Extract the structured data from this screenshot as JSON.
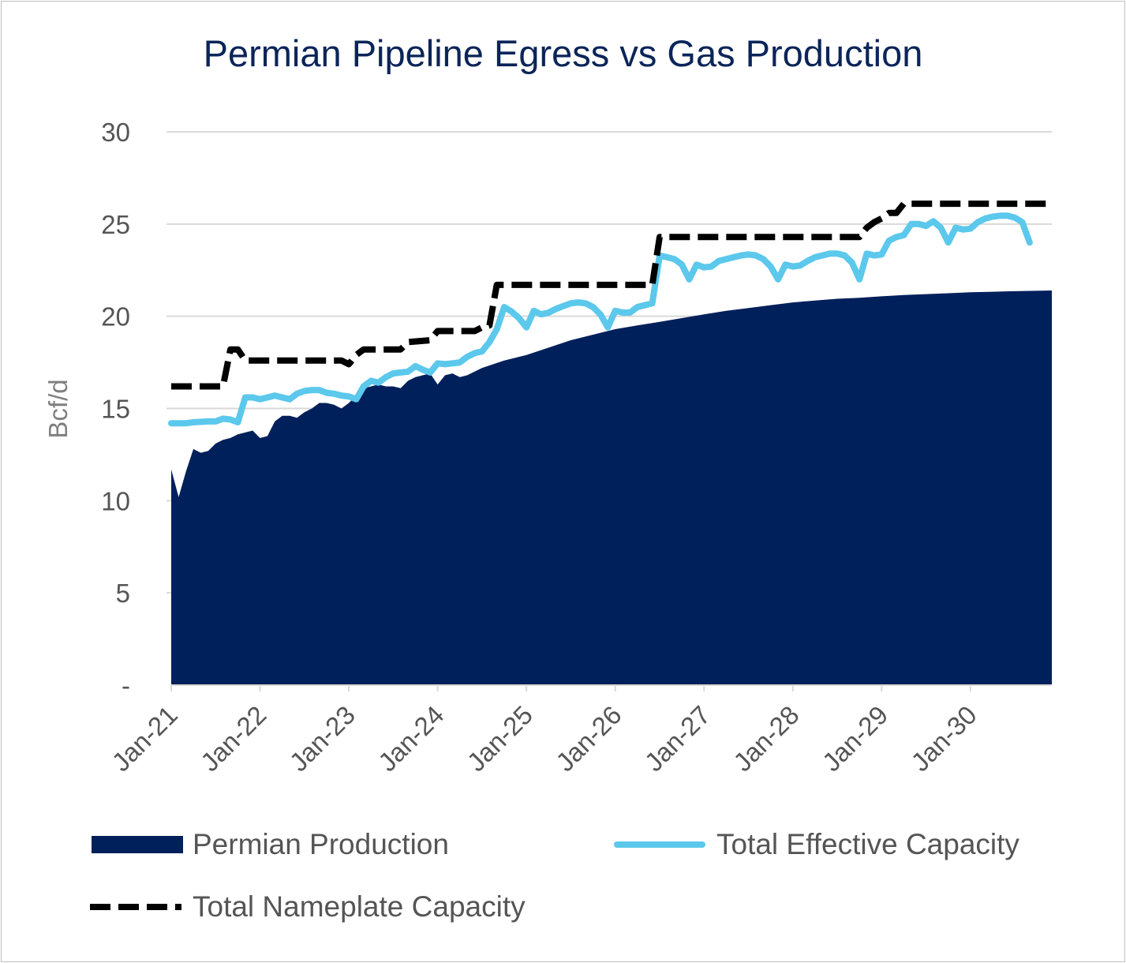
{
  "chart_data": {
    "type": "area",
    "title": "Permian Pipeline Egress vs Gas Production",
    "ylabel": "Bcf/d",
    "xlabel": "",
    "ylim": [
      0,
      30
    ],
    "yticks": [
      0,
      5,
      10,
      15,
      20,
      25,
      30
    ],
    "ytick_labels": [
      "-",
      "5",
      "10",
      "15",
      "20",
      "25",
      "30"
    ],
    "xticks": [
      0,
      12,
      24,
      36,
      48,
      60,
      72,
      84,
      96,
      108
    ],
    "xtick_labels": [
      "Jan-21",
      "Jan-22",
      "Jan-23",
      "Jan-24",
      "Jan-25",
      "Jan-26",
      "Jan-27",
      "Jan-28",
      "Jan-29",
      "Jan-30"
    ],
    "xlim": [
      0,
      119
    ],
    "grid": true,
    "legend_position": "bottom",
    "series": [
      {
        "name": "Permian Production",
        "kind": "area",
        "color": "#00205b",
        "points": [
          [
            0,
            11.7
          ],
          [
            1,
            10.2
          ],
          [
            2,
            11.6
          ],
          [
            3,
            12.8
          ],
          [
            4,
            12.6
          ],
          [
            5,
            12.7
          ],
          [
            6,
            13.1
          ],
          [
            7,
            13.3
          ],
          [
            8,
            13.4
          ],
          [
            9,
            13.6
          ],
          [
            10,
            13.7
          ],
          [
            11,
            13.8
          ],
          [
            12,
            13.4
          ],
          [
            13,
            13.5
          ],
          [
            14,
            14.3
          ],
          [
            15,
            14.6
          ],
          [
            16,
            14.6
          ],
          [
            17,
            14.5
          ],
          [
            18,
            14.8
          ],
          [
            19,
            15.0
          ],
          [
            20,
            15.3
          ],
          [
            21,
            15.3
          ],
          [
            22,
            15.2
          ],
          [
            23,
            15.0
          ],
          [
            24,
            15.3
          ],
          [
            25,
            15.7
          ],
          [
            26,
            16.1
          ],
          [
            27,
            16.2
          ],
          [
            28,
            16.3
          ],
          [
            29,
            16.2
          ],
          [
            30,
            16.2
          ],
          [
            31,
            16.1
          ],
          [
            32,
            16.5
          ],
          [
            33,
            16.7
          ],
          [
            34,
            16.8
          ],
          [
            35,
            16.9
          ],
          [
            36,
            16.3
          ],
          [
            37,
            16.8
          ],
          [
            38,
            16.9
          ],
          [
            39,
            16.7
          ],
          [
            40,
            16.8
          ],
          [
            42,
            17.2
          ],
          [
            45,
            17.6
          ],
          [
            48,
            17.9
          ],
          [
            51,
            18.3
          ],
          [
            54,
            18.7
          ],
          [
            57,
            19.0
          ],
          [
            60,
            19.3
          ],
          [
            63,
            19.5
          ],
          [
            66,
            19.7
          ],
          [
            69,
            19.9
          ],
          [
            72,
            20.1
          ],
          [
            75,
            20.3
          ],
          [
            78,
            20.45
          ],
          [
            81,
            20.6
          ],
          [
            84,
            20.75
          ],
          [
            87,
            20.85
          ],
          [
            90,
            20.95
          ],
          [
            93,
            21.0
          ],
          [
            96,
            21.08
          ],
          [
            99,
            21.15
          ],
          [
            102,
            21.2
          ],
          [
            105,
            21.25
          ],
          [
            108,
            21.3
          ],
          [
            111,
            21.33
          ],
          [
            114,
            21.36
          ],
          [
            117,
            21.38
          ],
          [
            119,
            21.4
          ]
        ]
      },
      {
        "name": "Total Effective Capacity",
        "kind": "line",
        "color": "#5bc8ec",
        "points": [
          [
            0,
            14.2
          ],
          [
            2,
            14.2
          ],
          [
            3,
            14.25
          ],
          [
            5,
            14.3
          ],
          [
            6,
            14.3
          ],
          [
            7,
            14.45
          ],
          [
            8,
            14.4
          ],
          [
            9,
            14.25
          ],
          [
            10,
            15.6
          ],
          [
            11,
            15.6
          ],
          [
            12,
            15.5
          ],
          [
            13,
            15.6
          ],
          [
            14,
            15.7
          ],
          [
            15,
            15.6
          ],
          [
            16,
            15.5
          ],
          [
            17,
            15.8
          ],
          [
            18,
            15.95
          ],
          [
            19,
            16.0
          ],
          [
            20,
            16.0
          ],
          [
            21,
            15.85
          ],
          [
            22,
            15.8
          ],
          [
            23,
            15.7
          ],
          [
            24,
            15.65
          ],
          [
            25,
            15.5
          ],
          [
            26,
            16.2
          ],
          [
            27,
            16.5
          ],
          [
            28,
            16.4
          ],
          [
            29,
            16.7
          ],
          [
            30,
            16.9
          ],
          [
            31,
            16.95
          ],
          [
            32,
            17.0
          ],
          [
            33,
            17.3
          ],
          [
            34,
            17.1
          ],
          [
            35,
            16.95
          ],
          [
            36,
            17.45
          ],
          [
            37,
            17.4
          ],
          [
            38,
            17.45
          ],
          [
            39,
            17.5
          ],
          [
            40,
            17.8
          ],
          [
            41,
            18.0
          ],
          [
            42,
            18.1
          ],
          [
            43,
            18.6
          ],
          [
            44,
            19.3
          ],
          [
            45,
            20.5
          ],
          [
            46,
            20.25
          ],
          [
            47,
            19.9
          ],
          [
            48,
            19.4
          ],
          [
            49,
            20.3
          ],
          [
            50,
            20.1
          ],
          [
            51,
            20.2
          ],
          [
            52,
            20.4
          ],
          [
            53,
            20.55
          ],
          [
            54,
            20.7
          ],
          [
            55,
            20.75
          ],
          [
            56,
            20.7
          ],
          [
            57,
            20.5
          ],
          [
            58,
            20.1
          ],
          [
            59,
            19.4
          ],
          [
            60,
            20.3
          ],
          [
            61,
            20.2
          ],
          [
            62,
            20.2
          ],
          [
            63,
            20.5
          ],
          [
            64,
            20.6
          ],
          [
            65,
            20.7
          ],
          [
            66,
            23.3
          ],
          [
            67,
            23.2
          ],
          [
            68,
            23.1
          ],
          [
            69,
            22.8
          ],
          [
            70,
            22.0
          ],
          [
            71,
            22.8
          ],
          [
            72,
            22.65
          ],
          [
            73,
            22.7
          ],
          [
            74,
            23.0
          ],
          [
            75,
            23.1
          ],
          [
            76,
            23.2
          ],
          [
            77,
            23.3
          ],
          [
            78,
            23.35
          ],
          [
            79,
            23.3
          ],
          [
            80,
            23.1
          ],
          [
            81,
            22.7
          ],
          [
            82,
            22.0
          ],
          [
            83,
            22.8
          ],
          [
            84,
            22.7
          ],
          [
            85,
            22.75
          ],
          [
            86,
            23.0
          ],
          [
            87,
            23.2
          ],
          [
            88,
            23.3
          ],
          [
            89,
            23.4
          ],
          [
            90,
            23.4
          ],
          [
            91,
            23.3
          ],
          [
            92,
            22.9
          ],
          [
            93,
            22.0
          ],
          [
            94,
            23.4
          ],
          [
            95,
            23.3
          ],
          [
            96,
            23.35
          ],
          [
            97,
            24.1
          ],
          [
            98,
            24.3
          ],
          [
            99,
            24.4
          ],
          [
            100,
            25.0
          ],
          [
            101,
            25.0
          ],
          [
            102,
            24.9
          ],
          [
            103,
            25.15
          ],
          [
            104,
            24.8
          ],
          [
            105,
            24.0
          ],
          [
            106,
            24.8
          ],
          [
            107,
            24.7
          ],
          [
            108,
            24.75
          ],
          [
            109,
            25.1
          ],
          [
            110,
            25.3
          ],
          [
            111,
            25.4
          ],
          [
            112,
            25.45
          ],
          [
            113,
            25.45
          ],
          [
            114,
            25.35
          ],
          [
            115,
            25.1
          ],
          [
            116,
            24.0
          ]
        ]
      },
      {
        "name": "Total Nameplate Capacity",
        "kind": "dashed-line",
        "color": "#000000",
        "points": [
          [
            0,
            16.2
          ],
          [
            7,
            16.2
          ],
          [
            8,
            18.2
          ],
          [
            9,
            18.2
          ],
          [
            10,
            17.6
          ],
          [
            23,
            17.6
          ],
          [
            24,
            17.4
          ],
          [
            25,
            17.9
          ],
          [
            26,
            18.2
          ],
          [
            31,
            18.2
          ],
          [
            32,
            18.6
          ],
          [
            35,
            18.7
          ],
          [
            36,
            19.2
          ],
          [
            41,
            19.2
          ],
          [
            42,
            19.4
          ],
          [
            43,
            19.5
          ],
          [
            44,
            21.7
          ],
          [
            65,
            21.7
          ],
          [
            66,
            24.3
          ],
          [
            93,
            24.3
          ],
          [
            94,
            24.8
          ],
          [
            95,
            25.1
          ],
          [
            96,
            25.3
          ],
          [
            97,
            25.6
          ],
          [
            98,
            25.6
          ],
          [
            99,
            26.1
          ],
          [
            119,
            26.1
          ]
        ]
      }
    ]
  }
}
